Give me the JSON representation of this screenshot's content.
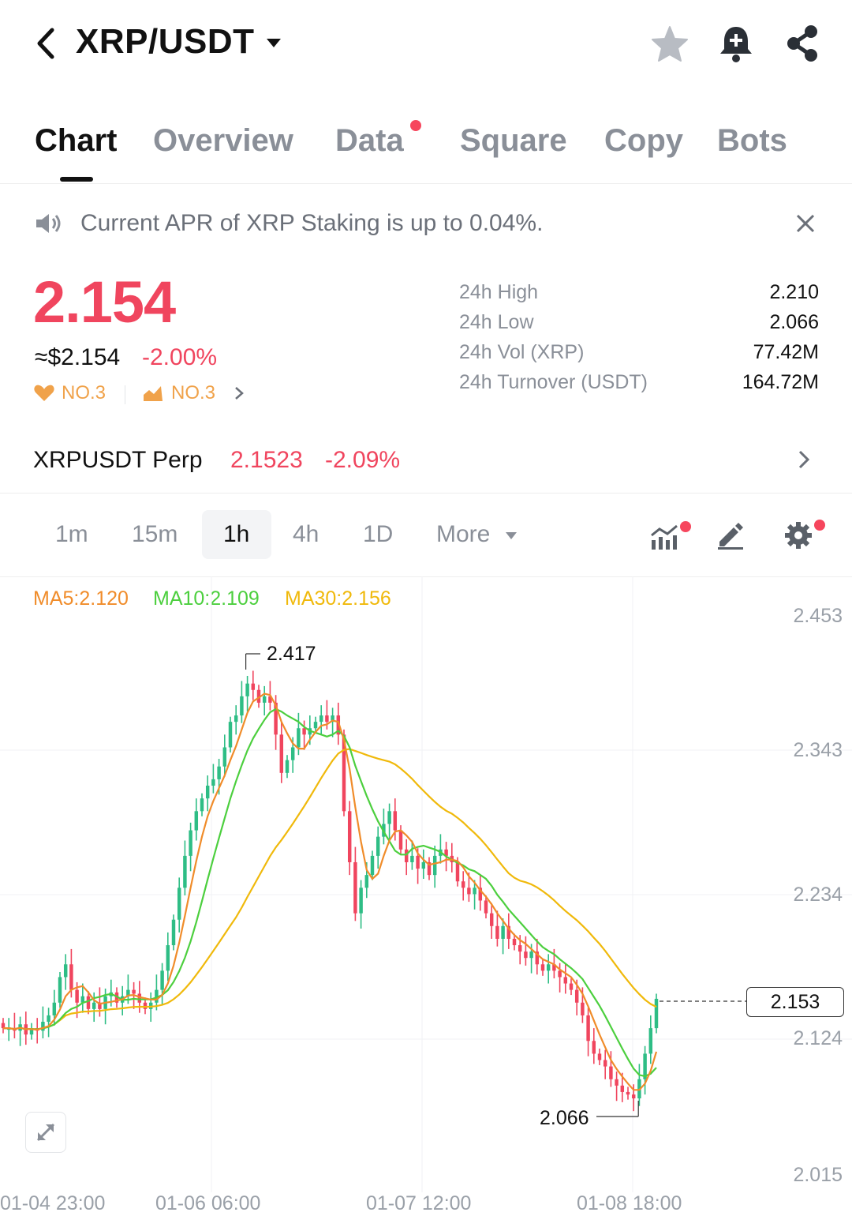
{
  "header": {
    "pair": "XRP/USDT",
    "icons": [
      "back-icon",
      "caret-down-icon",
      "star-icon",
      "bell-plus-icon",
      "share-icon"
    ]
  },
  "tabs": [
    {
      "label": "Chart",
      "active": true
    },
    {
      "label": "Overview"
    },
    {
      "label": "Data",
      "has_dot": true
    },
    {
      "label": "Square"
    },
    {
      "label": "Copy"
    },
    {
      "label": "Bots"
    }
  ],
  "banner": {
    "text": "Current APR of XRP Staking is up to 0.04%."
  },
  "ticker": {
    "price": "2.154",
    "usd_value": "≈$2.154",
    "change": "-2.00%",
    "rank_hot": "NO.3",
    "rank_gain": "NO.3"
  },
  "stats": [
    {
      "label": "24h High",
      "value": "2.210"
    },
    {
      "label": "24h Low",
      "value": "2.066"
    },
    {
      "label": "24h Vol (XRP)",
      "value": "77.42M"
    },
    {
      "label": "24h Turnover (USDT)",
      "value": "164.72M"
    }
  ],
  "perp": {
    "name": "XRPUSDT Perp",
    "price": "2.1523",
    "change": "-2.09%"
  },
  "intervals": [
    "1m",
    "15m",
    "1h",
    "4h",
    "1D",
    "More"
  ],
  "selected_interval": "1h",
  "colors": {
    "up": "#2ebd85",
    "down": "#f0455e",
    "ma5": "#f08c2a",
    "ma10": "#4ccf3e",
    "ma30": "#f0b90b"
  },
  "chart_data": {
    "type": "candlestick",
    "indicators": [
      {
        "name": "MA5",
        "label": "MA5:2.120",
        "value": 2.12
      },
      {
        "name": "MA10",
        "label": "MA10:2.109",
        "value": 2.109
      },
      {
        "name": "MA30",
        "label": "MA30:2.156",
        "value": 2.156
      }
    ],
    "y_ticks": [
      "2.453",
      "2.343",
      "2.234",
      "2.124",
      "2.015"
    ],
    "x_ticks": [
      "01-04 23:00",
      "01-06 06:00",
      "01-07 12:00",
      "01-08 18:00"
    ],
    "ylim": [
      2.015,
      2.453
    ],
    "period_high": "2.417",
    "period_low": "2.066",
    "current_price": "2.153",
    "close_path": [
      2.13,
      2.13,
      2.128,
      2.133,
      2.125,
      2.13,
      2.128,
      2.135,
      2.14,
      2.15,
      2.17,
      2.18,
      2.16,
      2.15,
      2.155,
      2.145,
      2.15,
      2.145,
      2.155,
      2.158,
      2.15,
      2.155,
      2.16,
      2.157,
      2.15,
      2.145,
      2.15,
      2.16,
      2.175,
      2.195,
      2.215,
      2.24,
      2.265,
      2.285,
      2.3,
      2.31,
      2.32,
      2.325,
      2.335,
      2.35,
      2.37,
      2.375,
      2.39,
      2.4,
      2.395,
      2.385,
      2.39,
      2.385,
      2.36,
      2.33,
      2.34,
      2.35,
      2.365,
      2.36,
      2.365,
      2.37,
      2.375,
      2.37,
      2.375,
      2.36,
      2.3,
      2.26,
      2.22,
      2.24,
      2.25,
      2.265,
      2.28,
      2.29,
      2.3,
      2.285,
      2.27,
      2.26,
      2.265,
      2.255,
      2.26,
      2.25,
      2.265,
      2.27,
      2.265,
      2.26,
      2.245,
      2.24,
      2.235,
      2.24,
      2.23,
      2.22,
      2.21,
      2.2,
      2.21,
      2.2,
      2.195,
      2.19,
      2.185,
      2.19,
      2.18,
      2.175,
      2.18,
      2.175,
      2.17,
      2.165,
      2.16,
      2.15,
      2.14,
      2.12,
      2.11,
      2.105,
      2.1,
      2.09,
      2.085,
      2.08,
      2.078,
      2.075,
      2.09,
      2.11,
      2.13,
      2.153
    ]
  }
}
